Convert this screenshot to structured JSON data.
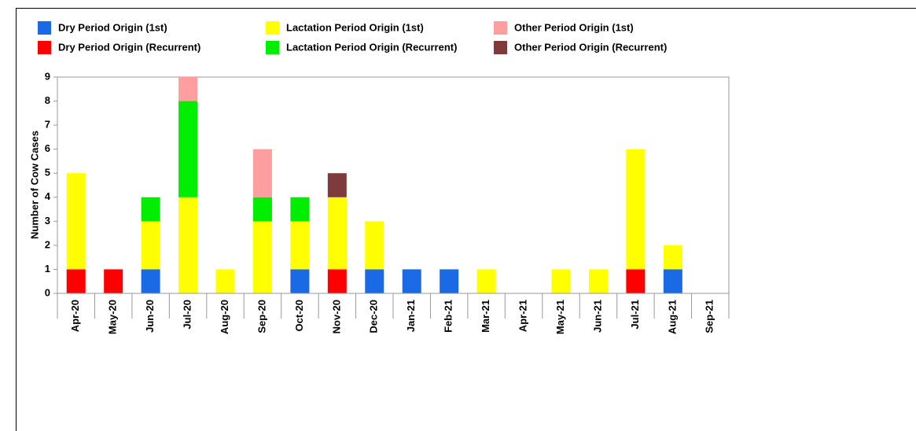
{
  "chart_data": {
    "type": "stacked_bar",
    "y_label": "Number of Cow Cases",
    "categories": [
      "Apr-20",
      "May-20",
      "Jun-20",
      "Jul-20",
      "Aug-20",
      "Sep-20",
      "Oct-20",
      "Nov-20",
      "Dec-20",
      "Jan-21",
      "Feb-21",
      "Mar-21",
      "Apr-21",
      "May-21",
      "Jun-21",
      "Jul-21",
      "Aug-21",
      "Sep-21"
    ],
    "series": [
      {
        "name": "Dry Period Origin (1st)",
        "color": "#1a6ae6",
        "values": [
          0,
          0,
          1,
          0,
          0,
          0,
          1,
          0,
          1,
          1,
          1,
          0,
          0,
          0,
          0,
          0,
          1,
          0
        ]
      },
      {
        "name": "Dry Period Origin (Recurrent)",
        "color": "#ff0000",
        "values": [
          1,
          1,
          0,
          0,
          0,
          0,
          0,
          1,
          0,
          0,
          0,
          0,
          0,
          0,
          0,
          1,
          0,
          0
        ]
      },
      {
        "name": "Lactation Period Origin (1st)",
        "color": "#ffff00",
        "values": [
          4,
          0,
          2,
          4,
          1,
          3,
          2,
          3,
          2,
          0,
          0,
          1,
          0,
          1,
          1,
          5,
          1,
          0
        ]
      },
      {
        "name": "Lactation Period Origin (Recurrent)",
        "color": "#00ee00",
        "values": [
          0,
          0,
          1,
          4,
          0,
          1,
          1,
          0,
          0,
          0,
          0,
          0,
          0,
          0,
          0,
          0,
          0,
          0
        ]
      },
      {
        "name": "Other Period Origin (1st)",
        "color": "#ff9e9e",
        "values": [
          0,
          0,
          0,
          1,
          0,
          2,
          0,
          0,
          0,
          0,
          0,
          0,
          0,
          0,
          0,
          0,
          0,
          0
        ]
      },
      {
        "name": "Other Period Origin (Recurrent)",
        "color": "#7f3b3b",
        "values": [
          0,
          0,
          0,
          0,
          0,
          0,
          0,
          1,
          0,
          0,
          0,
          0,
          0,
          0,
          0,
          0,
          0,
          0
        ]
      }
    ],
    "ylim": [
      0,
      9
    ],
    "yticks": [
      0,
      1,
      2,
      3,
      4,
      5,
      6,
      7,
      8,
      9
    ]
  }
}
